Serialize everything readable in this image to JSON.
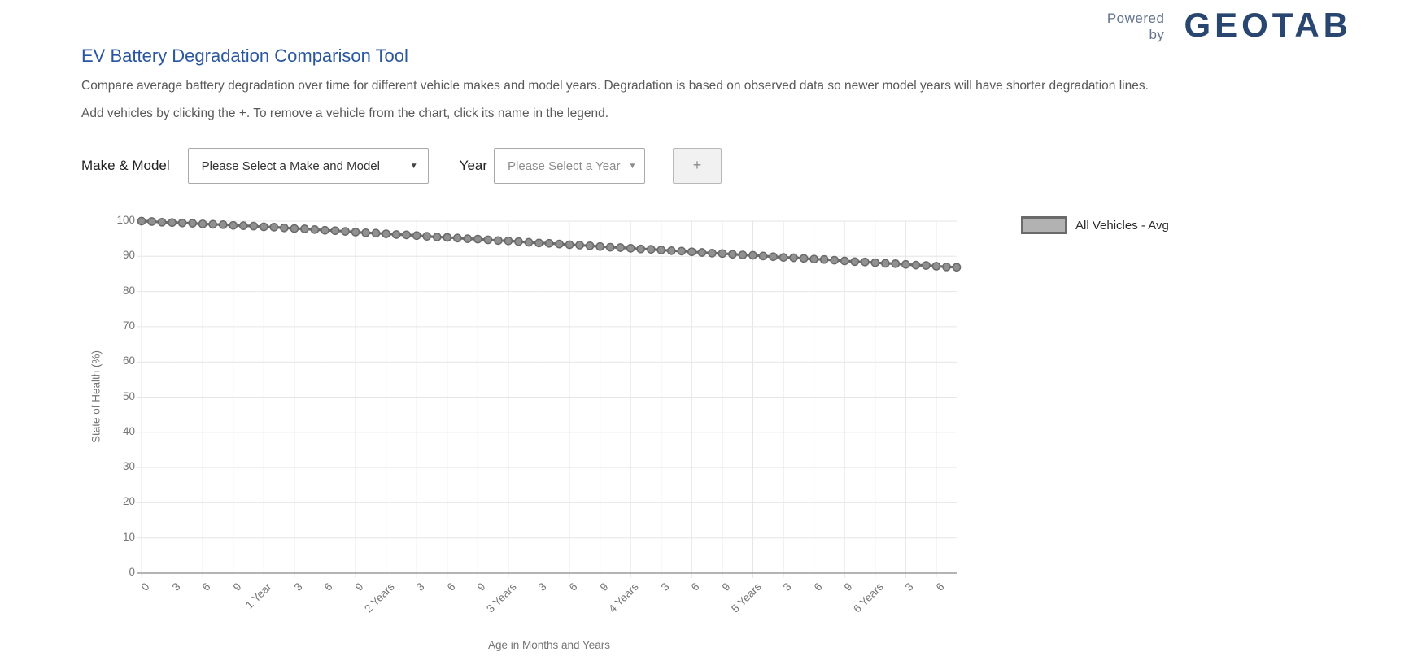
{
  "logo": {
    "powered_line1": "Powered",
    "powered_line2": "by",
    "brand": "GEOTAB",
    "brand_color": "#28466f"
  },
  "header": {
    "title": "EV Battery Degradation Comparison Tool",
    "description": "Compare average battery degradation over time for different vehicle makes and model years. Degradation is based on observed data so newer model years will have shorter degradation lines.",
    "instructions": "Add vehicles by clicking the +. To remove a vehicle from the chart, click its name in the legend."
  },
  "form": {
    "make_model_label": "Make & Model",
    "make_model_value": "Please Select a Make and Model",
    "year_label": "Year",
    "year_value": "Please Select a Year",
    "add_button_label": "+"
  },
  "chart_data": {
    "type": "line",
    "xlabel": "Age in Months and Years",
    "ylabel": "State of Health (%)",
    "ylim": [
      0,
      100
    ],
    "y_ticks": [
      0,
      10,
      20,
      30,
      40,
      50,
      60,
      70,
      80,
      90,
      100
    ],
    "x_tick_months": [
      0,
      3,
      6,
      9,
      12,
      15,
      18,
      21,
      24,
      27,
      30,
      33,
      36,
      39,
      42,
      45,
      48,
      51,
      54,
      57,
      60,
      63,
      66,
      69,
      72,
      75,
      78
    ],
    "x_tick_labels": [
      "0",
      "3",
      "6",
      "9",
      "1 Year",
      "3",
      "6",
      "9",
      "2 Years",
      "3",
      "6",
      "9",
      "3 Years",
      "3",
      "6",
      "9",
      "4 Years",
      "3",
      "6",
      "9",
      "5 Years",
      "3",
      "6",
      "9",
      "6 Years",
      "3",
      "6"
    ],
    "grid": true,
    "legend_position": "right",
    "series": [
      {
        "name": "All Vehicles - Avg",
        "x_start_month": 0,
        "x_step_months": 1,
        "line_color": "#6a6a6a",
        "point_fill": "#909090",
        "values": [
          100,
          99.9,
          99.7,
          99.6,
          99.5,
          99.4,
          99.2,
          99.1,
          99.0,
          98.8,
          98.7,
          98.6,
          98.4,
          98.3,
          98.1,
          97.9,
          97.8,
          97.6,
          97.4,
          97.3,
          97.1,
          96.9,
          96.7,
          96.6,
          96.4,
          96.2,
          96.1,
          95.9,
          95.7,
          95.5,
          95.4,
          95.2,
          95.0,
          94.9,
          94.7,
          94.5,
          94.4,
          94.2,
          94.0,
          93.8,
          93.7,
          93.5,
          93.3,
          93.2,
          93.0,
          92.8,
          92.6,
          92.5,
          92.3,
          92.1,
          92.0,
          91.8,
          91.6,
          91.5,
          91.3,
          91.1,
          90.9,
          90.8,
          90.6,
          90.4,
          90.3,
          90.1,
          89.9,
          89.7,
          89.6,
          89.4,
          89.2,
          89.1,
          88.9,
          88.7,
          88.5,
          88.4,
          88.2,
          88.0,
          87.9,
          87.7,
          87.5,
          87.4,
          87.2,
          87.0,
          86.9
        ]
      }
    ],
    "legend_entries": [
      {
        "label": "All Vehicles - Avg",
        "swatch_fill": "#b2b2b2",
        "swatch_border": "#6b6b6b"
      }
    ]
  },
  "colors": {
    "title": "#2a56a0",
    "body_text": "#595959",
    "grid": "#e6e6e6",
    "axis": "#9b9b9b",
    "tick_text": "#757575"
  }
}
